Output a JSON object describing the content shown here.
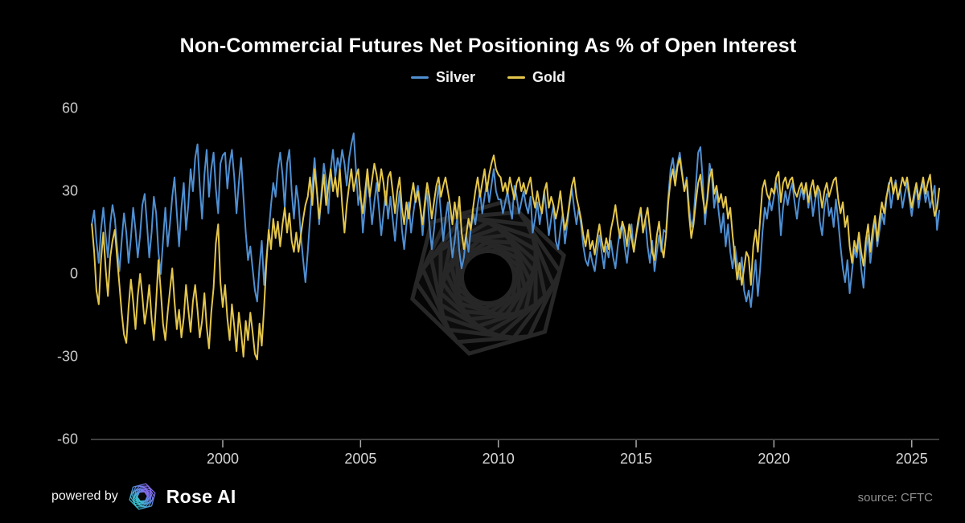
{
  "footer": {
    "powered_by": "powered by",
    "brand": "Rose AI",
    "source": "source: CFTC"
  },
  "icons": {
    "watermark": "rose-ai-hexagon-watermark",
    "logo": "rose-ai-logo"
  },
  "colors": {
    "background": "#000000",
    "title_text": "#ffffff",
    "tick_text": "#c9c9c9",
    "axis_line": "#3f3f3f",
    "tick_mark": "#a8a8a8",
    "silver": "#4f8fd2",
    "gold": "#e4c64b",
    "logo_teal": "#2fd4c6",
    "logo_purple": "#9b5cf6"
  },
  "chart_data": {
    "type": "line",
    "title": "Non-Commercial Futures Net Positioning As % of Open Interest",
    "x_start": 1995.25,
    "x_step": 0.0833333,
    "x_tick_labels": [
      2000,
      2005,
      2010,
      2015,
      2020,
      2025
    ],
    "y_tick_labels": [
      60,
      30,
      0,
      -30,
      -60
    ],
    "xlim": [
      1995.25,
      2026.0
    ],
    "ylim": [
      -60,
      60
    ],
    "grid": false,
    "legend_position": "top",
    "source": "CFTC",
    "series": [
      {
        "name": "Silver",
        "color": "#4f8fd2",
        "values": [
          18,
          23,
          12,
          4,
          16,
          24,
          14,
          6,
          18,
          25,
          20,
          10,
          1,
          12,
          22,
          15,
          4,
          13,
          24,
          16,
          6,
          14,
          25,
          29,
          18,
          6,
          15,
          28,
          22,
          8,
          0,
          12,
          24,
          10,
          18,
          28,
          35,
          22,
          10,
          24,
          33,
          16,
          25,
          38,
          30,
          42,
          47,
          32,
          20,
          36,
          45,
          28,
          38,
          44,
          31,
          22,
          40,
          43,
          44,
          31,
          40,
          45,
          35,
          22,
          33,
          42,
          28,
          15,
          5,
          10,
          2,
          -6,
          -10,
          3,
          12,
          -4,
          6,
          15,
          25,
          33,
          28,
          38,
          44,
          36,
          24,
          40,
          45,
          30,
          20,
          32,
          26,
          14,
          5,
          -3,
          8,
          20,
          32,
          42,
          30,
          18,
          30,
          40,
          34,
          22,
          38,
          45,
          35,
          42,
          38,
          45,
          40,
          32,
          42,
          47,
          51,
          38,
          25,
          30,
          15,
          25,
          35,
          28,
          18,
          26,
          33,
          24,
          14,
          22,
          30,
          20,
          28,
          20,
          12,
          22,
          30,
          16,
          9,
          18,
          26,
          15,
          22,
          28,
          32,
          25,
          14,
          24,
          30,
          18,
          9,
          16,
          25,
          32,
          22,
          12,
          20,
          26,
          15,
          6,
          12,
          20,
          8,
          2,
          6,
          14,
          8,
          16,
          22,
          18,
          25,
          30,
          22,
          28,
          33,
          26,
          32,
          38,
          30,
          27,
          27,
          22,
          26,
          30,
          24,
          20,
          32,
          28,
          22,
          26,
          30,
          25,
          22,
          28,
          15,
          20,
          26,
          18,
          24,
          30,
          22,
          14,
          20,
          25,
          12,
          9,
          16,
          22,
          11,
          18,
          25,
          31,
          24,
          18,
          24,
          18,
          10,
          5,
          3,
          8,
          4,
          1,
          8,
          14,
          8,
          2,
          10,
          6,
          12,
          6,
          2,
          10,
          16,
          18,
          10,
          4,
          12,
          18,
          8,
          14,
          18,
          24,
          15,
          20,
          10,
          4,
          12,
          1,
          8,
          14,
          8,
          16,
          15,
          28,
          38,
          42,
          35,
          40,
          44,
          37,
          30,
          35,
          25,
          17,
          20,
          32,
          44,
          46,
          34,
          18,
          28,
          40,
          35,
          24,
          30,
          22,
          15,
          22,
          10,
          18,
          8,
          2,
          10,
          4,
          -2,
          6,
          -6,
          -10,
          -6,
          -12,
          -3,
          5,
          -8,
          2,
          15,
          24,
          20,
          27,
          23,
          28,
          33,
          28,
          14,
          24,
          30,
          25,
          30,
          33,
          26,
          20,
          27,
          31,
          27,
          33,
          24,
          30,
          21,
          27,
          31,
          19,
          14,
          24,
          29,
          21,
          24,
          17,
          27,
          19,
          10,
          2,
          -3,
          5,
          -7,
          1,
          9,
          6,
          12,
          2,
          -5,
          8,
          14,
          4,
          12,
          20,
          10,
          16,
          22,
          18,
          27,
          33,
          24,
          30,
          34,
          27,
          31,
          24,
          29,
          33,
          27,
          21,
          27,
          32,
          24,
          30,
          33,
          26,
          30,
          24,
          28,
          32,
          16,
          23
        ]
      },
      {
        "name": "Gold",
        "color": "#e4c64b",
        "values": [
          18,
          8,
          -6,
          -11,
          5,
          15,
          2,
          -8,
          6,
          12,
          16,
          6,
          -4,
          -14,
          -22,
          -25,
          -12,
          -2,
          -10,
          -20,
          -8,
          0,
          -8,
          -18,
          -12,
          -4,
          -16,
          -24,
          -10,
          5,
          -6,
          -18,
          -24,
          -14,
          -6,
          2,
          -10,
          -20,
          -13,
          -23,
          -16,
          -4,
          -13,
          -21,
          -10,
          -4,
          -13,
          -23,
          -17,
          -7,
          -19,
          -27,
          -14,
          -5,
          11,
          18,
          -3,
          -12,
          -4,
          -16,
          -24,
          -11,
          -19,
          -28,
          -14,
          -21,
          -30,
          -17,
          -24,
          -14,
          -21,
          -29,
          -31,
          -18,
          -26,
          -12,
          4,
          16,
          9,
          20,
          13,
          19,
          10,
          18,
          24,
          15,
          22,
          12,
          8,
          15,
          8,
          14,
          20,
          25,
          28,
          35,
          25,
          38,
          30,
          20,
          28,
          36,
          25,
          32,
          38,
          30,
          35,
          28,
          38,
          25,
          15,
          25,
          32,
          38,
          30,
          35,
          38,
          28,
          22,
          30,
          38,
          28,
          34,
          40,
          36,
          30,
          38,
          33,
          25,
          35,
          37,
          30,
          22,
          30,
          35,
          24,
          18,
          26,
          20,
          28,
          33,
          26,
          30,
          24,
          18,
          26,
          33,
          28,
          20,
          26,
          32,
          35,
          28,
          32,
          35,
          30,
          25,
          18,
          26,
          20,
          28,
          15,
          9,
          14,
          20,
          16,
          24,
          30,
          35,
          28,
          33,
          38,
          30,
          36,
          40,
          43,
          38,
          36,
          35,
          30,
          33,
          29,
          35,
          31,
          27,
          33,
          35,
          30,
          33,
          29,
          32,
          35,
          28,
          24,
          30,
          25,
          22,
          30,
          33,
          24,
          28,
          25,
          20,
          24,
          30,
          22,
          16,
          20,
          26,
          32,
          35,
          28,
          24,
          20,
          14,
          10,
          16,
          9,
          12,
          7,
          13,
          18,
          12,
          8,
          13,
          9,
          16,
          20,
          25,
          18,
          13,
          19,
          16,
          10,
          18,
          13,
          8,
          14,
          20,
          24,
          15,
          20,
          24,
          16,
          8,
          5,
          14,
          19,
          10,
          6,
          14,
          26,
          34,
          38,
          32,
          39,
          42,
          36,
          30,
          34,
          22,
          13,
          18,
          26,
          33,
          36,
          28,
          22,
          27,
          35,
          38,
          29,
          32,
          26,
          29,
          24,
          28,
          20,
          24,
          14,
          6,
          -2,
          4,
          -4,
          2,
          8,
          6,
          -4,
          10,
          16,
          8,
          20,
          31,
          34,
          29,
          27,
          31,
          29,
          35,
          37,
          26,
          33,
          35,
          31,
          34,
          35,
          30,
          28,
          31,
          33,
          29,
          33,
          26,
          31,
          34,
          28,
          32,
          30,
          24,
          30,
          33,
          28,
          31,
          34,
          35,
          27,
          22,
          26,
          17,
          21,
          10,
          4,
          12,
          8,
          15,
          8,
          3,
          12,
          18,
          8,
          16,
          21,
          12,
          20,
          26,
          22,
          28,
          32,
          35,
          29,
          33,
          27,
          31,
          35,
          32,
          35,
          29,
          24,
          29,
          33,
          27,
          31,
          35,
          29,
          33,
          36,
          27,
          21,
          24,
          31
        ]
      }
    ]
  }
}
